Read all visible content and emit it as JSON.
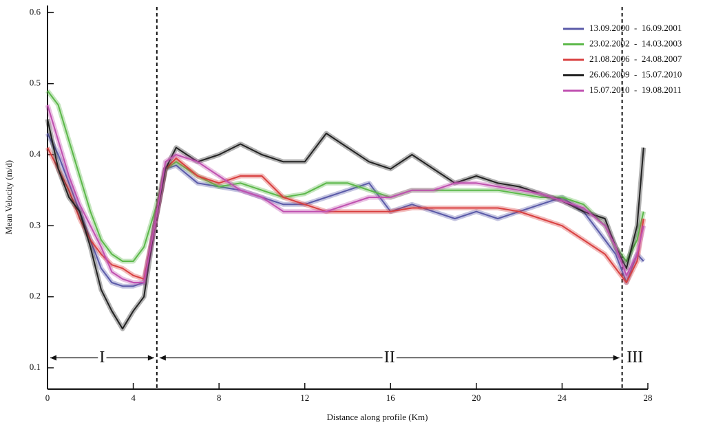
{
  "chart_data": {
    "type": "line",
    "xlabel": "Distance along profile (Km)",
    "ylabel": "Mean Velocity (m/d)",
    "x": [
      0,
      0.5,
      1,
      1.5,
      2,
      2.5,
      3,
      3.5,
      4,
      4.5,
      5,
      5.5,
      6,
      7,
      8,
      9,
      10,
      11,
      12,
      13,
      14,
      15,
      16,
      17,
      18,
      19,
      20,
      21,
      22,
      23,
      24,
      25,
      26,
      26.5,
      27,
      27.5,
      27.8
    ],
    "series": [
      {
        "name": "13.09.2000  -  16.09.2001",
        "color": "#5a5aa8",
        "values": [
          0.43,
          0.4,
          0.36,
          0.32,
          0.28,
          0.24,
          0.22,
          0.215,
          0.215,
          0.22,
          0.3,
          0.38,
          0.385,
          0.36,
          0.355,
          0.35,
          0.34,
          0.33,
          0.33,
          0.34,
          0.35,
          0.36,
          0.32,
          0.33,
          0.32,
          0.31,
          0.32,
          0.31,
          0.32,
          0.33,
          0.34,
          0.32,
          0.28,
          0.26,
          0.22,
          0.26,
          0.25
        ]
      },
      {
        "name": "23.02.2002  -  14.03.2003",
        "color": "#5cb84a",
        "values": [
          0.49,
          0.47,
          0.42,
          0.37,
          0.32,
          0.28,
          0.26,
          0.25,
          0.25,
          0.27,
          0.32,
          0.38,
          0.39,
          0.37,
          0.355,
          0.36,
          0.35,
          0.34,
          0.345,
          0.36,
          0.36,
          0.35,
          0.34,
          0.35,
          0.35,
          0.35,
          0.35,
          0.35,
          0.345,
          0.34,
          0.34,
          0.33,
          0.3,
          0.27,
          0.25,
          0.28,
          0.32
        ]
      },
      {
        "name": "21.08.2006  -  24.08.2007",
        "color": "#d94040",
        "values": [
          0.41,
          0.38,
          0.35,
          0.31,
          0.28,
          0.26,
          0.245,
          0.24,
          0.23,
          0.225,
          0.3,
          0.38,
          0.395,
          0.37,
          0.36,
          0.37,
          0.37,
          0.34,
          0.33,
          0.32,
          0.32,
          0.32,
          0.32,
          0.325,
          0.325,
          0.325,
          0.325,
          0.325,
          0.32,
          0.31,
          0.3,
          0.28,
          0.26,
          0.24,
          0.22,
          0.25,
          0.31
        ]
      },
      {
        "name": "26.06.2009  -  15.07.2010",
        "color": "#222222",
        "values": [
          0.45,
          0.38,
          0.34,
          0.32,
          0.27,
          0.21,
          0.18,
          0.155,
          0.18,
          0.2,
          0.3,
          0.38,
          0.41,
          0.39,
          0.4,
          0.415,
          0.4,
          0.39,
          0.39,
          0.43,
          0.41,
          0.39,
          0.38,
          0.4,
          0.38,
          0.36,
          0.37,
          0.36,
          0.355,
          0.345,
          0.335,
          0.32,
          0.31,
          0.27,
          0.24,
          0.3,
          0.41
        ]
      },
      {
        "name": "15.07.2010  -  19.08.2011",
        "color": "#c050b0",
        "values": [
          0.47,
          0.42,
          0.37,
          0.33,
          0.3,
          0.27,
          0.235,
          0.225,
          0.22,
          0.22,
          0.3,
          0.39,
          0.4,
          0.39,
          0.37,
          0.35,
          0.34,
          0.32,
          0.32,
          0.32,
          0.33,
          0.34,
          0.34,
          0.35,
          0.35,
          0.36,
          0.36,
          0.355,
          0.35,
          0.345,
          0.335,
          0.325,
          0.3,
          0.27,
          0.23,
          0.26,
          0.3
        ]
      }
    ],
    "xlim": [
      0,
      28
    ],
    "xticks": [
      0,
      4,
      8,
      12,
      16,
      20,
      24,
      28
    ],
    "ylim": [
      0.07,
      0.61
    ],
    "yticks": [
      0.1,
      0.2,
      0.3,
      0.4,
      0.5,
      0.6
    ],
    "boundaries": [
      5.1,
      26.8
    ],
    "regions": [
      {
        "label": "I",
        "from": 0,
        "to": 5.1
      },
      {
        "label": "II",
        "from": 5.1,
        "to": 26.8
      },
      {
        "label": "III",
        "from": 26.8,
        "to": 28
      }
    ],
    "legend": "upper right"
  }
}
